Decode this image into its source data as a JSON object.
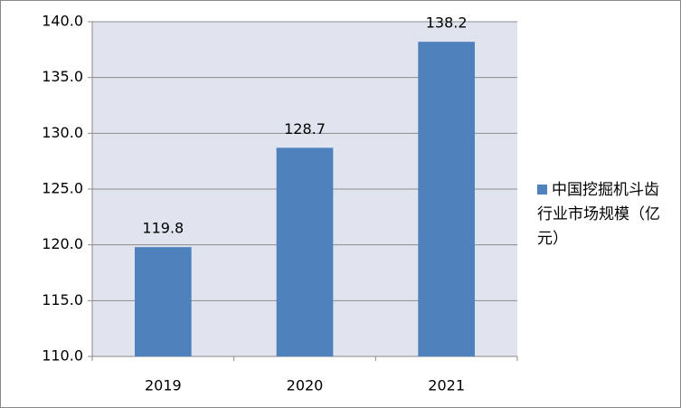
{
  "chart_data": {
    "type": "bar",
    "categories": [
      "2019",
      "2020",
      "2021"
    ],
    "series": [
      {
        "name": "中国挖掘机斗齿行业市场规模（亿元）",
        "color": "#4f81bd",
        "values": [
          119.8,
          128.7,
          138.2
        ]
      }
    ],
    "ylim": [
      110,
      140
    ],
    "yticks": [
      {
        "value": 110,
        "label": "110.0"
      },
      {
        "value": 115,
        "label": "115.0"
      },
      {
        "value": 120,
        "label": "120.0"
      },
      {
        "value": 125,
        "label": "125.0"
      },
      {
        "value": 130,
        "label": "130.0"
      },
      {
        "value": 135,
        "label": "135.0"
      },
      {
        "value": 140,
        "label": "140.0"
      }
    ],
    "grid": true,
    "legend": "right"
  }
}
